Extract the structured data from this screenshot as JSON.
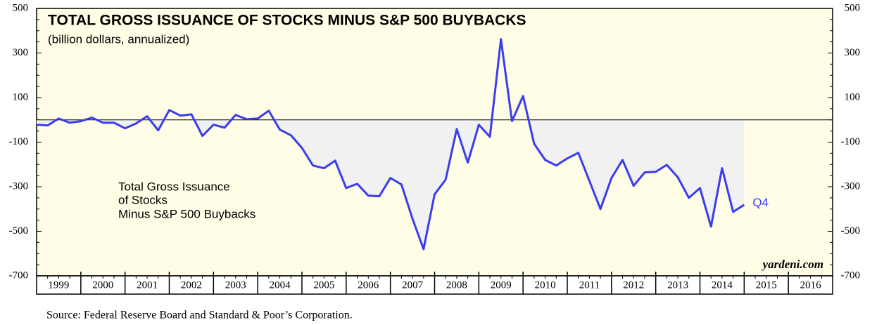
{
  "chart_data": {
    "type": "line",
    "title": "TOTAL GROSS ISSUANCE OF STOCKS MINUS S&P 500 BUYBACKS",
    "subtitle": "(billion dollars, annualized)",
    "line_label": [
      "Total Gross Issuance",
      "of Stocks",
      "Minus S&P 500 Buybacks"
    ],
    "end_label": "Q4",
    "brand": "yardeni.com",
    "source": "Source: Federal Reserve Board and Standard & Poor’s Corporation.",
    "categories": [
      "1999",
      "2000",
      "2001",
      "2002",
      "2003",
      "2004",
      "2005",
      "2006",
      "2007",
      "2008",
      "2009",
      "2010",
      "2011",
      "2012",
      "2013",
      "2014",
      "2015",
      "2016"
    ],
    "x": [
      1999,
      1999.25,
      1999.5,
      1999.75,
      2000,
      2000.25,
      2000.5,
      2000.75,
      2001,
      2001.25,
      2001.5,
      2001.75,
      2002,
      2002.25,
      2002.5,
      2002.75,
      2003,
      2003.25,
      2003.5,
      2003.75,
      2004,
      2004.25,
      2004.5,
      2004.75,
      2005,
      2005.25,
      2005.5,
      2005.75,
      2006,
      2006.25,
      2006.5,
      2006.75,
      2007,
      2007.25,
      2007.5,
      2007.75,
      2008,
      2008.25,
      2008.5,
      2008.75,
      2009,
      2009.25,
      2009.5,
      2009.75,
      2010,
      2010.25,
      2010.5,
      2010.75,
      2011,
      2011.25,
      2011.5,
      2011.75,
      2012,
      2012.25,
      2012.5,
      2012.75,
      2013,
      2013.25,
      2013.5,
      2013.75,
      2014,
      2014.25,
      2014.5,
      2014.75,
      2015
    ],
    "values": [
      -22,
      -25,
      6,
      -13,
      -6,
      10,
      -13,
      -13,
      -38,
      -16,
      16,
      -47,
      44,
      19,
      25,
      -72,
      -22,
      -35,
      22,
      3,
      6,
      41,
      -44,
      -69,
      -126,
      -205,
      -217,
      -183,
      -306,
      -287,
      -340,
      -343,
      -261,
      -290,
      -444,
      -580,
      -334,
      -268,
      -41,
      -192,
      -22,
      -76,
      362,
      -6,
      107,
      -107,
      -180,
      -205,
      -173,
      -148,
      -274,
      -400,
      -261,
      -180,
      -296,
      -236,
      -233,
      -202,
      -258,
      -350,
      -306,
      -479,
      -217,
      -413,
      -381
    ],
    "color": "#3a3cf0",
    "area_color": "#f1f1f1",
    "background": "#fffde6",
    "xlim": [
      1999,
      2017
    ],
    "ylim": [
      -700,
      500
    ],
    "yticks": [
      -700,
      -500,
      -300,
      -100,
      100,
      300,
      500
    ]
  }
}
